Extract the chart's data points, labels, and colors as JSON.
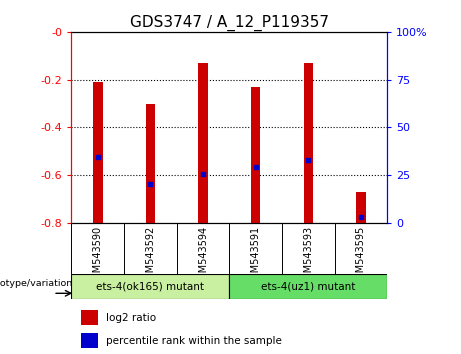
{
  "title": "GDS3747 / A_12_P119357",
  "categories": [
    "GSM543590",
    "GSM543592",
    "GSM543594",
    "GSM543591",
    "GSM543593",
    "GSM543595"
  ],
  "bar_tops": [
    -0.21,
    -0.3,
    -0.13,
    -0.23,
    -0.13,
    -0.67
  ],
  "bar_bottoms": [
    -0.8,
    -0.8,
    -0.8,
    -0.8,
    -0.8,
    -0.8
  ],
  "percentile_rank_y": [
    -0.525,
    -0.635,
    -0.595,
    -0.565,
    -0.535,
    -0.775
  ],
  "ylim_left": [
    -0.8,
    0.0
  ],
  "ylim_right": [
    0,
    100
  ],
  "yticks_left": [
    0.0,
    -0.2,
    -0.4,
    -0.6,
    -0.8
  ],
  "ytick_labels_left": [
    "-0",
    "-0.2",
    "-0.4",
    "-0.6",
    "-0.8"
  ],
  "yticks_right": [
    100,
    75,
    50,
    25,
    0
  ],
  "ytick_labels_right": [
    "100%",
    "75",
    "50",
    "25",
    "0"
  ],
  "group1_label": "ets-4(ok165) mutant",
  "group2_label": "ets-4(uz1) mutant",
  "group1_indices": [
    0,
    1,
    2
  ],
  "group2_indices": [
    3,
    4,
    5
  ],
  "group1_color": "#c8f0a0",
  "group2_color": "#66dd66",
  "bar_color": "#cc0000",
  "marker_color": "#0000cc",
  "xticklabel_bg": "#c8c8c8",
  "legend_log2": "log2 ratio",
  "legend_pct": "percentile rank within the sample",
  "genotype_label": "genotype/variation",
  "title_fontsize": 11,
  "tick_fontsize": 8,
  "bar_width": 0.18
}
